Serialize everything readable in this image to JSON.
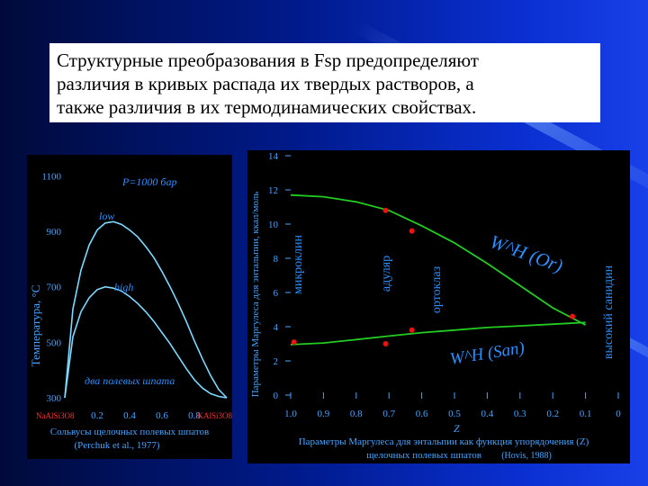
{
  "slide": {
    "title_lines": [
      "Структурные преобразования в Fsp предопределяют",
      "различия в кривых распада их твердых растворов,  а",
      "также различия в их термодинамических свойствах."
    ]
  },
  "colors": {
    "left_curve": "#7fd8ff",
    "right_curve": "#22cc22",
    "points": "#ee1111",
    "axis_text": "#4aa3ff",
    "annotation": "#2e8fff",
    "highlight": "#ff3333"
  },
  "chart_data": [
    {
      "type": "line",
      "ylabel": "Температура, °С",
      "yticks": [
        300,
        500,
        700,
        900,
        1100
      ],
      "ylim": [
        300,
        1150
      ],
      "xticks": [
        "0.2",
        "0.4",
        "0.6",
        "0.8"
      ],
      "xlim": [
        0,
        1
      ],
      "x_end_left": "NaAlSi3O8",
      "x_end_right": "KAlSi3O8",
      "annotations": [
        "P=1000 бар",
        "low",
        "high",
        "два полевых шпата"
      ],
      "caption": [
        "Сольвусы щелочных полевых шпатов",
        "(Perchuk et al., 1977)"
      ],
      "series": [
        {
          "name": "low",
          "x": [
            0.0,
            0.05,
            0.1,
            0.15,
            0.2,
            0.25,
            0.3,
            0.35,
            0.4,
            0.45,
            0.5,
            0.55,
            0.6,
            0.65,
            0.7,
            0.75,
            0.8,
            0.85,
            0.9,
            0.95,
            1.0
          ],
          "y": [
            300,
            620,
            760,
            850,
            905,
            930,
            935,
            925,
            905,
            880,
            845,
            805,
            755,
            700,
            640,
            575,
            505,
            440,
            380,
            330,
            300
          ]
        },
        {
          "name": "high",
          "x": [
            0.0,
            0.05,
            0.1,
            0.15,
            0.2,
            0.25,
            0.3,
            0.35,
            0.4,
            0.45,
            0.5,
            0.55,
            0.6,
            0.65,
            0.7,
            0.75,
            0.8,
            0.85,
            0.9,
            0.95,
            1.0
          ],
          "y": [
            300,
            520,
            610,
            660,
            690,
            700,
            695,
            685,
            665,
            640,
            610,
            575,
            535,
            495,
            450,
            405,
            365,
            335,
            315,
            305,
            300
          ]
        }
      ]
    },
    {
      "type": "line",
      "ylabel": "Параметры Маргулеса для энтальпии, ккал/моль",
      "yticks": [
        0,
        2,
        4,
        6,
        8,
        10,
        12,
        14
      ],
      "ylim": [
        0,
        14
      ],
      "xlabel": "Z",
      "xticks": [
        "1.0",
        "0.9",
        "0.8",
        "0.7",
        "0.6",
        "0.5",
        "0.4",
        "0.3",
        "0.2",
        "0.1",
        "0"
      ],
      "xlim": [
        1.0,
        0.0
      ],
      "x_reversed": true,
      "phase_labels": [
        "микроклин",
        "адуляр",
        "ортоклаз",
        "высокий санидин"
      ],
      "caption": [
        "Параметры Маргулеса для энтальпии как функция упорядочения (Z)",
        "щелочных полевых шпатов",
        "(Hovis, 1988)"
      ],
      "series": [
        {
          "name": "W^H (Or)",
          "x": [
            1.0,
            0.9,
            0.8,
            0.7,
            0.6,
            0.5,
            0.4,
            0.3,
            0.2,
            0.1
          ],
          "y": [
            11.7,
            11.6,
            11.3,
            10.8,
            9.9,
            8.9,
            7.7,
            6.4,
            5.1,
            4.1
          ]
        },
        {
          "name": "W^H (San)",
          "x": [
            1.0,
            0.9,
            0.8,
            0.7,
            0.6,
            0.5,
            0.4,
            0.3,
            0.2,
            0.1
          ],
          "y": [
            2.95,
            3.05,
            3.25,
            3.45,
            3.65,
            3.8,
            3.95,
            4.05,
            4.15,
            4.25
          ]
        }
      ],
      "points": [
        {
          "x": 0.99,
          "y": 3.1
        },
        {
          "x": 0.71,
          "y": 10.8
        },
        {
          "x": 0.71,
          "y": 3.0
        },
        {
          "x": 0.63,
          "y": 9.6
        },
        {
          "x": 0.63,
          "y": 3.8
        },
        {
          "x": 0.14,
          "y": 4.6
        }
      ]
    }
  ]
}
